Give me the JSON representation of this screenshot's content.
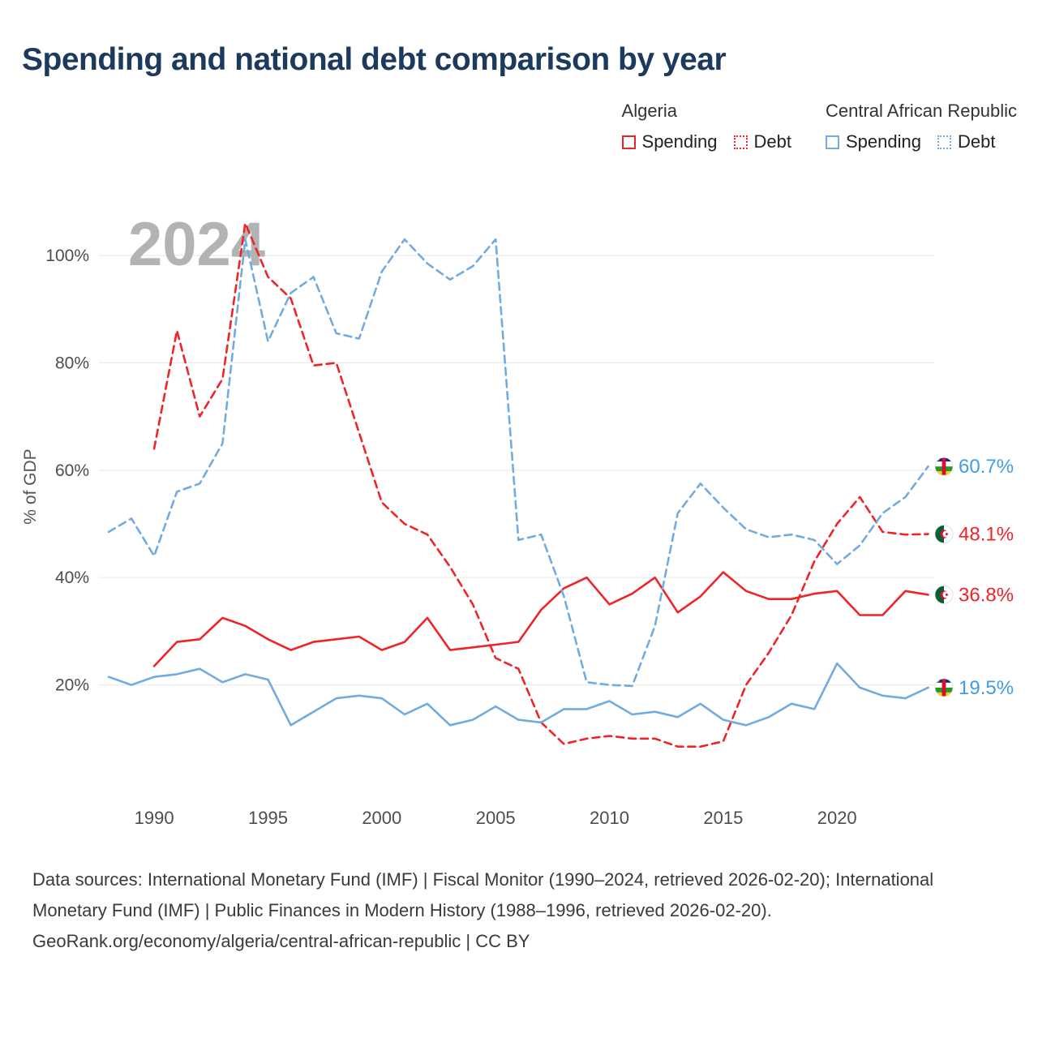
{
  "title": "Spending and national debt comparison by year",
  "legend": {
    "groups": [
      {
        "country": "Algeria",
        "items": [
          {
            "label": "Spending",
            "line_style": "solid",
            "color": "#ee2428"
          },
          {
            "label": "Debt",
            "line_style": "dashed",
            "color": "#ee2428"
          }
        ]
      },
      {
        "country": "Central African Republic",
        "items": [
          {
            "label": "Spending",
            "line_style": "solid",
            "color": "#72abdf"
          },
          {
            "label": "Debt",
            "line_style": "dashed",
            "color": "#72abdf"
          }
        ]
      }
    ]
  },
  "footer": {
    "sources": "Data sources: International Monetary Fund (IMF) | Fiscal Monitor (1990–2024, retrieved 2026-02-20); International Monetary Fund (IMF) | Public Finances in Modern History (1988–1996, retrieved 2026-02-20).",
    "attribution": "GeoRank.org/economy/algeria/central-african-republic | CC BY"
  },
  "chart_data": {
    "type": "line",
    "title": "Spending and national debt comparison by year",
    "xlabel": "",
    "ylabel": "% of GDP",
    "watermark": "2024",
    "x_range": [
      1988,
      2024
    ],
    "ylim": [
      0,
      110
    ],
    "yticks": [
      20,
      40,
      60,
      80,
      100
    ],
    "xticks": [
      1990,
      1995,
      2000,
      2005,
      2010,
      2015,
      2020
    ],
    "grid": true,
    "legend_position": "top-right",
    "series": [
      {
        "id": "algeria-spending",
        "name": "Algeria Spending",
        "color": "#ee2428",
        "dashed": false,
        "start_year": 1990,
        "end_value": 36.8,
        "values": [
          23.5,
          28,
          28.5,
          32.5,
          31,
          28.5,
          26.5,
          28,
          28.5,
          29,
          26.5,
          28,
          32.5,
          26.5,
          27,
          27.5,
          28,
          34,
          38,
          40,
          35,
          37,
          40,
          33.5,
          36.5,
          41,
          37.5,
          36,
          36,
          37,
          37.5,
          33,
          33,
          37.5,
          36.8
        ]
      },
      {
        "id": "algeria-debt",
        "name": "Algeria Debt",
        "color": "#ee2428",
        "dashed": true,
        "start_year": 1990,
        "end_value": 48.1,
        "values": [
          64,
          86,
          70,
          77,
          106,
          96,
          92,
          79.5,
          80,
          67,
          54,
          50,
          48,
          42,
          35,
          25,
          23,
          13,
          9,
          10,
          10.5,
          10,
          10,
          8.5,
          8.5,
          9.5,
          20,
          26,
          33,
          43,
          50,
          55,
          48.5,
          48,
          48.1
        ]
      },
      {
        "id": "car-spending",
        "name": "Central African Republic Spending",
        "color": "#72abdf",
        "dashed": false,
        "start_year": 1988,
        "end_value": 19.5,
        "values": [
          21.5,
          20,
          21.5,
          22,
          23,
          20.5,
          22,
          21,
          12.5,
          15,
          17.5,
          18,
          17.5,
          14.5,
          16.5,
          12.5,
          13.5,
          16,
          13.5,
          13,
          15.5,
          15.5,
          17,
          14.5,
          15,
          14,
          16.5,
          13.5,
          12.5,
          14,
          16.5,
          15.5,
          24,
          19.5,
          18,
          17.5,
          19.5
        ]
      },
      {
        "id": "car-debt",
        "name": "Central African Republic Debt",
        "color": "#72abdf",
        "dashed": true,
        "start_year": 1988,
        "end_value": 60.7,
        "values": [
          48.5,
          51,
          44,
          56,
          57.5,
          65,
          103,
          84,
          93,
          96,
          85.5,
          84.5,
          97,
          103,
          98.5,
          95.5,
          98,
          103,
          47,
          48,
          36.5,
          20.5,
          20,
          19.8,
          31,
          52,
          57.5,
          53,
          49,
          47.5,
          48,
          47,
          42.5,
          46,
          52,
          55,
          60.7
        ]
      }
    ],
    "end_labels": [
      {
        "text": "60.7%",
        "value": 60.7,
        "color": "#419ce8",
        "flag": "car",
        "series": "Central African Republic Debt"
      },
      {
        "text": "48.1%",
        "value": 48.1,
        "color": "#ee2428",
        "flag": "algeria",
        "series": "Algeria Debt"
      },
      {
        "text": "36.8%",
        "value": 36.8,
        "color": "#ee2428",
        "flag": "algeria",
        "series": "Algeria Spending"
      },
      {
        "text": "19.5%",
        "value": 19.5,
        "color": "#419ce8",
        "flag": "car",
        "series": "Central African Republic Spending"
      }
    ]
  }
}
